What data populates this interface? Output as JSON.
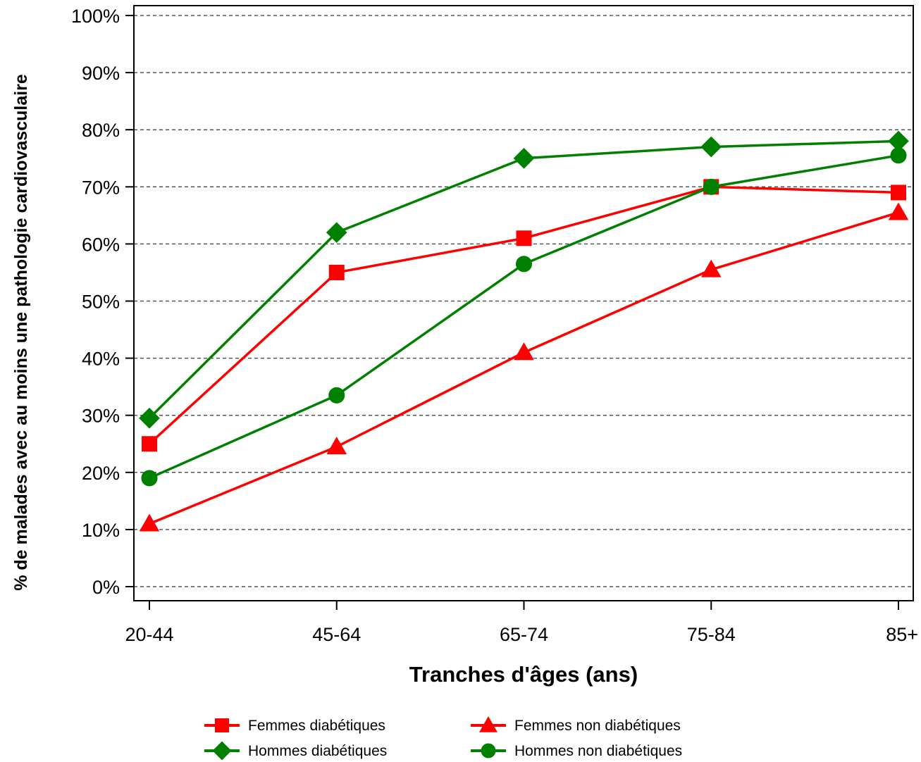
{
  "chart_data": {
    "type": "line",
    "title": "",
    "xlabel": "Tranches d'âges (ans)",
    "ylabel": "% de malades avec au moins une pathologie cardiovasculaire",
    "categories": [
      "20-44",
      "45-64",
      "65-74",
      "75-84",
      "85+"
    ],
    "ylim": [
      0,
      100
    ],
    "yticks": [
      0,
      10,
      20,
      30,
      40,
      50,
      60,
      70,
      80,
      90,
      100
    ],
    "ytick_labels": [
      "0%",
      "10%",
      "20%",
      "30%",
      "40%",
      "50%",
      "60%",
      "70%",
      "80%",
      "90%",
      "100%"
    ],
    "grid": "horizontal dashed",
    "legend_position": "bottom",
    "series": [
      {
        "name": "Femmes diabétiques",
        "color": "#ff0000",
        "marker": "square",
        "values": [
          25,
          55,
          61,
          70,
          69
        ]
      },
      {
        "name": "Hommes diabétiques",
        "color": "#008000",
        "marker": "diamond",
        "values": [
          29.5,
          62,
          75,
          77,
          78
        ]
      },
      {
        "name": "Femmes non diabétiques",
        "color": "#ff0000",
        "marker": "triangle",
        "values": [
          11,
          24.5,
          41,
          55.5,
          65.5
        ]
      },
      {
        "name": "Hommes non diabétiques",
        "color": "#008000",
        "marker": "circle",
        "values": [
          19,
          33.5,
          56.5,
          70,
          75.5
        ]
      }
    ]
  }
}
